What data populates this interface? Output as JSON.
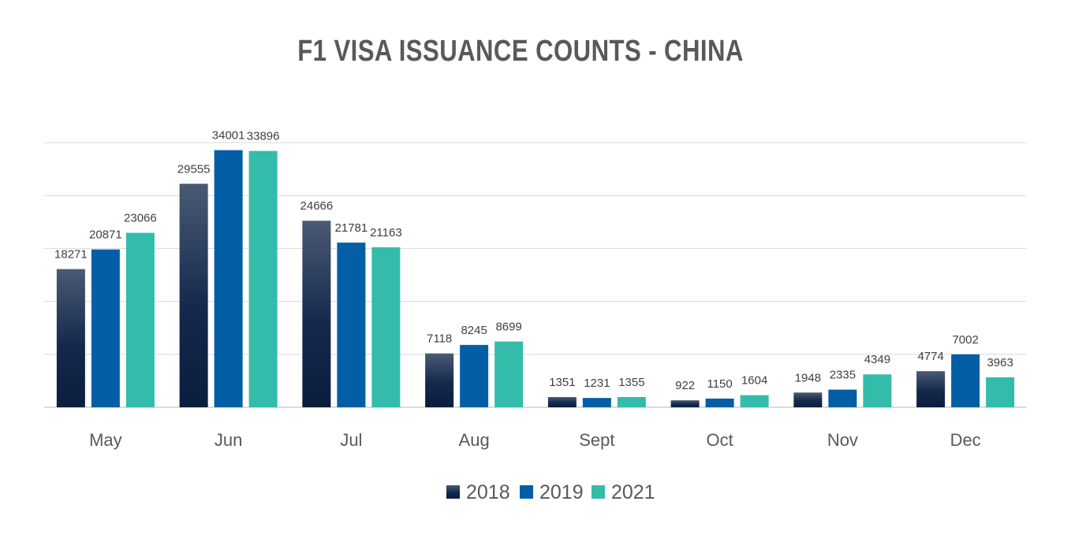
{
  "chart_data": {
    "type": "bar",
    "title": "F1 VISA ISSUANCE COUNTS - CHINA",
    "xlabel": "",
    "ylabel": "",
    "categories": [
      "May",
      "Jun",
      "Jul",
      "Aug",
      "Sept",
      "Oct",
      "Nov",
      "Dec"
    ],
    "series": [
      {
        "name": "2018",
        "color": "#0d2347",
        "values": [
          18271,
          29555,
          24666,
          7118,
          1351,
          922,
          1948,
          4774
        ]
      },
      {
        "name": "2019",
        "color": "#035ea6",
        "values": [
          20871,
          34001,
          21781,
          8245,
          1231,
          1150,
          2335,
          7002
        ]
      },
      {
        "name": "2021",
        "color": "#34bcab",
        "values": [
          23066,
          33896,
          21163,
          8699,
          1355,
          1604,
          4349,
          3963
        ]
      }
    ],
    "ylim": [
      0,
      35000
    ],
    "y_gridlines": [
      0,
      7000,
      14000,
      21000,
      28000,
      35000
    ],
    "grid": true,
    "legend_position": "bottom",
    "data_labels": true
  }
}
